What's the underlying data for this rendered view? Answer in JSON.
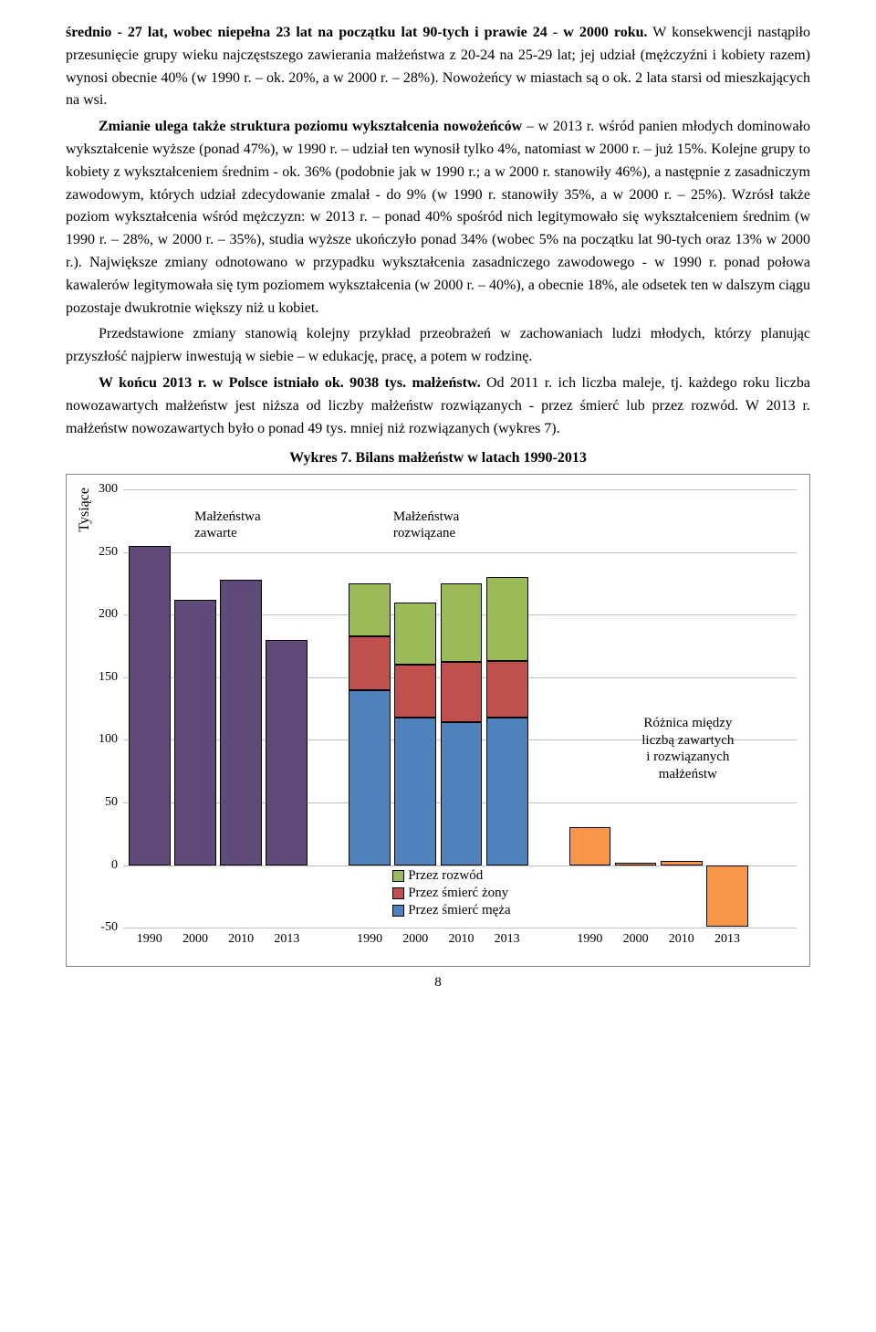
{
  "paragraphs": {
    "p1a": "średnio - 27 lat, wobec niepełna 23 lat na początku lat 90-tych i prawie 24 - w 2000 roku.",
    "p1b": " W konsekwencji nastąpiło przesunięcie grupy wieku najczęstszego zawierania małżeństwa z 20-24 na 25-29 lat; jej udział (mężczyźni i kobiety razem) wynosi obecnie 40% (w 1990 r. – ok. 20%, a w 2000 r. – 28%). Nowożeńcy w miastach są o ok. 2 lata starsi od mieszkających na wsi.",
    "p2a": "Zmianie ulega także struktura poziomu wykształcenia nowożeńców",
    "p2b": " – w 2013 r. wśród panien młodych dominowało wykształcenie wyższe (ponad 47%), w 1990 r. – udział ten wynosił tylko 4%, natomiast w 2000 r. – już 15%. Kolejne grupy to kobiety z wykształceniem średnim - ok. 36% (podobnie jak w 1990 r.; a w 2000 r. stanowiły 46%), a następnie z zasadniczym zawodowym, których udział zdecydowanie zmalał - do 9% (w 1990 r. stanowiły 35%, a w 2000 r. –  25%). Wzrósł także poziom wykształcenia wśród mężczyzn: w 2013 r. – ponad 40% spośród nich legitymowało się wykształceniem średnim (w 1990 r. – 28%, w 2000 r. – 35%), studia wyższe ukończyło ponad 34% (wobec 5% na początku lat 90-tych oraz 13% w 2000 r.). Największe zmiany odnotowano w przypadku wykształcenia zasadniczego zawodowego - w 1990 r. ponad połowa kawalerów legitymowała się tym poziomem wykształcenia (w 2000 r. – 40%), a obecnie 18%, ale odsetek ten w dalszym ciągu pozostaje dwukrotnie większy niż u kobiet.",
    "p3": "Przedstawione zmiany stanowią kolejny przykład przeobrażeń  w zachowaniach  ludzi młodych, którzy planując przyszłość najpierw inwestują w siebie – w edukację, pracę, a potem w rodzinę.",
    "p4a": "W końcu 2013 r. w Polsce istniało ok. 9038 tys. małżeństw.",
    "p4b": " Od 2011 r. ich liczba maleje, tj. każdego roku liczba nowozawartych małżeństw jest niższa od liczby małżeństw rozwiązanych - przez śmierć lub przez rozwód. W 2013 r. małżeństw nowozawartych było o ponad 49 tys. mniej niż rozwiązanych (wykres 7).",
    "chart_title": "Wykres 7. Bilans małżeństw w latach 1990-2013"
  },
  "chart": {
    "ylabel": "Tysiące",
    "ymin": -50,
    "ymax": 300,
    "ytick_step": 50,
    "grid_color": "#bfbfbf",
    "background": "#ffffff",
    "groups": [
      {
        "title": "Małżeństwa zawarte",
        "title_pos_pct": 15.5,
        "bars": [
          {
            "year": "1990",
            "segments": [
              {
                "from": 0,
                "to": 255,
                "color": "#604a7b"
              }
            ]
          },
          {
            "year": "2000",
            "segments": [
              {
                "from": 0,
                "to": 212,
                "color": "#604a7b"
              }
            ]
          },
          {
            "year": "2010",
            "segments": [
              {
                "from": 0,
                "to": 228,
                "color": "#604a7b"
              }
            ]
          },
          {
            "year": "2013",
            "segments": [
              {
                "from": 0,
                "to": 180,
                "color": "#604a7b"
              }
            ]
          }
        ]
      },
      {
        "title": "Małżeństwa rozwiązane",
        "title_pos_pct": 45,
        "bars": [
          {
            "year": "1990",
            "segments": [
              {
                "from": 0,
                "to": 140,
                "color": "#4f81bd"
              },
              {
                "from": 140,
                "to": 183,
                "color": "#c0504d"
              },
              {
                "from": 183,
                "to": 225,
                "color": "#9bbb59"
              }
            ]
          },
          {
            "year": "2000",
            "segments": [
              {
                "from": 0,
                "to": 118,
                "color": "#4f81bd"
              },
              {
                "from": 118,
                "to": 160,
                "color": "#c0504d"
              },
              {
                "from": 160,
                "to": 210,
                "color": "#9bbb59"
              }
            ]
          },
          {
            "year": "2010",
            "segments": [
              {
                "from": 0,
                "to": 114,
                "color": "#4f81bd"
              },
              {
                "from": 114,
                "to": 162,
                "color": "#c0504d"
              },
              {
                "from": 162,
                "to": 225,
                "color": "#9bbb59"
              }
            ]
          },
          {
            "year": "2013",
            "segments": [
              {
                "from": 0,
                "to": 118,
                "color": "#4f81bd"
              },
              {
                "from": 118,
                "to": 163,
                "color": "#c0504d"
              },
              {
                "from": 163,
                "to": 230,
                "color": "#9bbb59"
              }
            ]
          }
        ]
      },
      {
        "title": "",
        "title_pos_pct": 0,
        "bars": [
          {
            "year": "1990",
            "segments": [
              {
                "from": 0,
                "to": 30,
                "color": "#f79646"
              }
            ]
          },
          {
            "year": "2000",
            "segments": [
              {
                "from": 0,
                "to": 2,
                "color": "#f79646"
              }
            ]
          },
          {
            "year": "2010",
            "segments": [
              {
                "from": 0,
                "to": 3,
                "color": "#f79646"
              }
            ]
          },
          {
            "year": "2013",
            "segments": [
              {
                "from": -49,
                "to": 0,
                "color": "#f79646"
              }
            ]
          }
        ]
      }
    ],
    "group_gap_pct": 5.5,
    "bar_width_pct": 6.2,
    "bar_gap_pct": 0.6,
    "left_pad_pct": 0.8,
    "annotation": {
      "lines": [
        "Różnica między",
        "liczbą zawartych",
        "i rozwiązanych",
        "małżeństw"
      ],
      "left_pct": 77,
      "y_value": 120
    },
    "cause_legend": {
      "items": [
        {
          "label": "Przez rozwód",
          "color": "#9bbb59"
        },
        {
          "label": "Przez śmierć żony",
          "color": "#c0504d"
        },
        {
          "label": "Przez śmierć męża",
          "color": "#4f81bd"
        }
      ],
      "left_pct": 40,
      "y_value_top": -2
    }
  },
  "page_number": "8"
}
